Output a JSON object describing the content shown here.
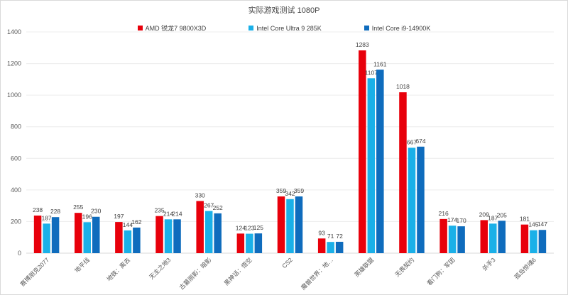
{
  "chart_data": {
    "type": "bar",
    "title": "实际游戏测试 1080P",
    "xlabel": "",
    "ylabel": "",
    "ylim": [
      0,
      1400
    ],
    "yticks": [
      0,
      200,
      400,
      600,
      800,
      1000,
      1200,
      1400
    ],
    "grid": true,
    "legend_position": "top",
    "categories": [
      "赛博朋克2077",
      "地平线",
      "地铁：离去",
      "无主之地3",
      "古墓丽影：暗影",
      "黑神话：悟空",
      "CS2",
      "魔兽世界：地…",
      "英雄联盟",
      "无畏契约",
      "看门狗：军团",
      "杀手3",
      "孤岛惊魂6"
    ],
    "series": [
      {
        "name": "AMD 锐龙7 9800X3D",
        "color": "#e8000b",
        "values": [
          238,
          255,
          197,
          235,
          330,
          124,
          359,
          93,
          1283,
          1018,
          216,
          209,
          181
        ]
      },
      {
        "name": "Intel Core Ultra 9 285K",
        "color": "#1ab0e8",
        "values": [
          187,
          196,
          144,
          214,
          267,
          123,
          342,
          71,
          1107,
          667,
          174,
          187,
          145
        ]
      },
      {
        "name": "Intel Core i9-14900K",
        "color": "#0f6cbd",
        "values": [
          228,
          230,
          162,
          214,
          252,
          125,
          359,
          72,
          1161,
          674,
          170,
          205,
          147
        ]
      }
    ]
  }
}
